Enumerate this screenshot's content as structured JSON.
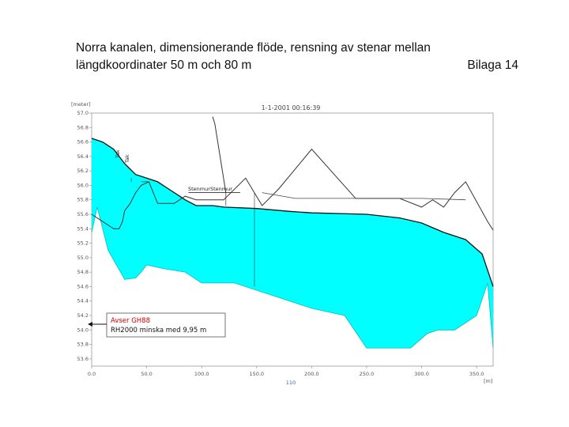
{
  "header": {
    "title_line1": "Norra kanalen, dimensionerande flöde, rensning av stenar mellan",
    "title_line2": "längdkoordinater  50 m och 80 m",
    "appendix": "Bilaga 14"
  },
  "colors": {
    "water_fill": "#00ffff",
    "annotation_text": "#cc0000",
    "line": "#222222"
  },
  "chart_data": {
    "type": "area",
    "title": "1-1-2001 00:16:39",
    "ylabel": "[meter]",
    "xlabel": "[m]",
    "x_marker_label": "110",
    "xlim": [
      0,
      365
    ],
    "ylim": [
      53.5,
      57.0
    ],
    "x_ticks": [
      "0.0",
      "50.0",
      "100.0",
      "150.0",
      "200.0",
      "250.0",
      "300.0",
      "350.0"
    ],
    "x_tick_values": [
      0,
      50,
      100,
      150,
      200,
      250,
      300,
      350
    ],
    "y_ticks": [
      "57.0",
      "56.8",
      "56.6",
      "56.4",
      "56.2",
      "56.0",
      "55.8",
      "55.6",
      "55.4",
      "55.2",
      "55.0",
      "54.8",
      "54.6",
      "54.4",
      "54.2",
      "54.0",
      "53.8",
      "53.6"
    ],
    "y_tick_values": [
      57.0,
      56.8,
      56.6,
      56.4,
      56.2,
      56.0,
      55.8,
      55.6,
      55.4,
      55.2,
      55.0,
      54.8,
      54.6,
      54.4,
      54.2,
      54.0,
      53.8,
      53.6
    ],
    "series": [
      {
        "role": "water_surface",
        "x": [
          0,
          10,
          20,
          30,
          40,
          50,
          60,
          70,
          80,
          85,
          95,
          110,
          120,
          150,
          180,
          200,
          250,
          280,
          300,
          320,
          340,
          355,
          365
        ],
        "y": [
          56.65,
          56.6,
          56.5,
          56.3,
          56.15,
          56.1,
          56.05,
          55.95,
          55.85,
          55.8,
          55.72,
          55.72,
          55.7,
          55.68,
          55.64,
          55.62,
          55.6,
          55.55,
          55.48,
          55.35,
          55.25,
          55.05,
          54.6
        ]
      },
      {
        "role": "channel_bottom",
        "x": [
          0,
          5,
          15,
          30,
          40,
          45,
          50,
          65,
          85,
          100,
          130,
          160,
          200,
          230,
          250,
          290,
          305,
          315,
          330,
          350,
          360,
          365
        ],
        "y": [
          55.35,
          55.7,
          55.1,
          54.7,
          54.72,
          54.8,
          54.9,
          54.85,
          54.8,
          54.65,
          54.65,
          54.5,
          54.3,
          54.2,
          53.75,
          53.75,
          53.95,
          54.0,
          54.0,
          54.2,
          54.65,
          53.75
        ]
      },
      {
        "role": "embankment_line",
        "x": [
          0,
          20,
          25,
          28,
          30,
          35,
          40,
          45,
          52,
          60,
          75,
          85,
          95,
          120,
          140,
          155,
          170,
          200,
          240,
          260,
          280,
          300,
          310,
          320,
          330,
          340,
          360,
          365
        ],
        "y": [
          55.6,
          55.4,
          55.4,
          55.5,
          55.65,
          55.75,
          55.9,
          56.0,
          56.05,
          55.75,
          55.75,
          55.85,
          55.8,
          55.8,
          56.1,
          55.72,
          55.95,
          56.5,
          55.82,
          55.82,
          55.82,
          55.7,
          55.8,
          55.7,
          55.9,
          56.05,
          55.5,
          55.38
        ]
      },
      {
        "role": "reference_line",
        "x": [
          155,
          185,
          300,
          340
        ],
        "y": [
          55.9,
          55.82,
          55.82,
          55.8
        ]
      }
    ],
    "stage_axis_x": 148,
    "structure_label": "Stenmur",
    "roof_label": "Tak",
    "annotation": {
      "line1": "Avser GH88",
      "line2": "RH2000 minska med 9,95 m",
      "target_y": 54.0
    }
  }
}
